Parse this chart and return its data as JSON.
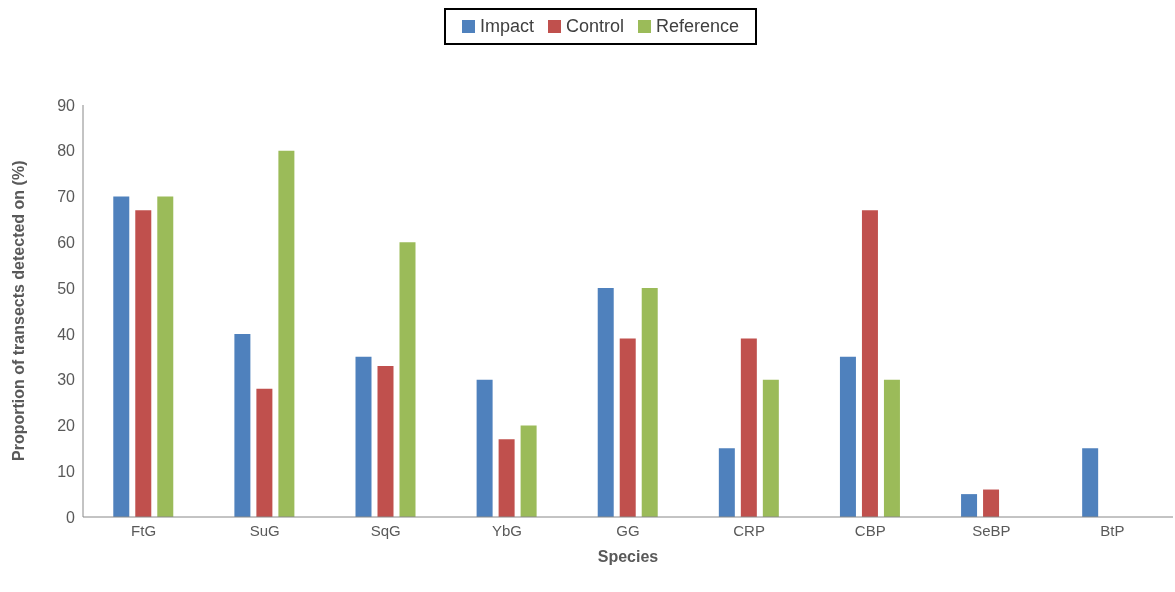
{
  "chart_data": {
    "type": "bar",
    "xlabel": "Species",
    "ylabel": "Proportion of transects detected on (%)",
    "categories": [
      "FtG",
      "SuG",
      "SqG",
      "YbG",
      "GG",
      "CRP",
      "CBP",
      "SeBP",
      "BtP"
    ],
    "series": [
      {
        "name": "Impact",
        "color": "#4f81bd",
        "values": [
          70,
          40,
          35,
          30,
          50,
          15,
          35,
          5,
          15
        ]
      },
      {
        "name": "Control",
        "color": "#c0504d",
        "values": [
          67,
          28,
          33,
          17,
          39,
          39,
          67,
          6,
          0
        ]
      },
      {
        "name": "Reference",
        "color": "#9bbb59",
        "values": [
          70,
          80,
          60,
          20,
          50,
          30,
          30,
          0,
          0
        ]
      }
    ],
    "ylim": [
      0,
      90
    ],
    "yticks": [
      0,
      10,
      20,
      30,
      40,
      50,
      60,
      70,
      80,
      90
    ],
    "grid": false,
    "legend": "top"
  }
}
